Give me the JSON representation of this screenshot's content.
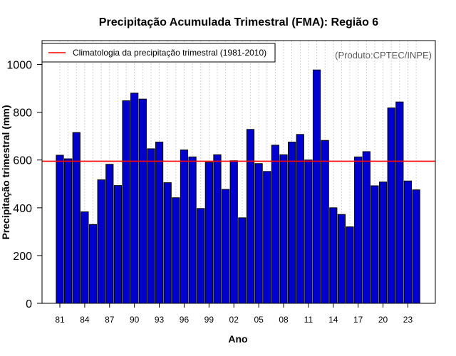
{
  "chart_data": {
    "type": "bar",
    "title": "Precipitação Acumulada Trimestral (FMA): Região 6",
    "xlabel": "Ano",
    "ylabel": "Precipitação trimestral (mm)",
    "credit": "(Produto:CPTEC/INPE)",
    "ylim": [
      0,
      1100
    ],
    "yticks": [
      "0",
      "200",
      "400",
      "600",
      "800",
      "1000"
    ],
    "ytick_values": [
      0,
      200,
      400,
      600,
      800,
      1000
    ],
    "categories": [
      "81",
      "82",
      "83",
      "84",
      "85",
      "86",
      "87",
      "88",
      "89",
      "90",
      "91",
      "92",
      "93",
      "94",
      "95",
      "96",
      "97",
      "98",
      "99",
      "00",
      "01",
      "02",
      "03",
      "04",
      "05",
      "06",
      "07",
      "08",
      "09",
      "10",
      "11",
      "12",
      "13",
      "14",
      "15",
      "16",
      "17",
      "18",
      "19",
      "20",
      "21",
      "22",
      "23",
      "24"
    ],
    "xtick_labels": [
      "81",
      "84",
      "87",
      "90",
      "93",
      "96",
      "99",
      "02",
      "05",
      "08",
      "11",
      "14",
      "17",
      "20",
      "23"
    ],
    "values": [
      620,
      605,
      715,
      383,
      330,
      517,
      582,
      493,
      848,
      880,
      855,
      647,
      675,
      505,
      442,
      642,
      613,
      397,
      590,
      622,
      477,
      597,
      358,
      728,
      585,
      552,
      662,
      622,
      675,
      707,
      600,
      977,
      682,
      400,
      372,
      320,
      613,
      635,
      492,
      508,
      818,
      843,
      512,
      475
    ],
    "bar_color": "#0000CD",
    "climatology": {
      "value": 595,
      "label": "Climatologia da precipitação trimestral (1981-2010)",
      "color": "#FF0000"
    },
    "grid": "vertical-dotted",
    "legend_position": "top-left"
  }
}
